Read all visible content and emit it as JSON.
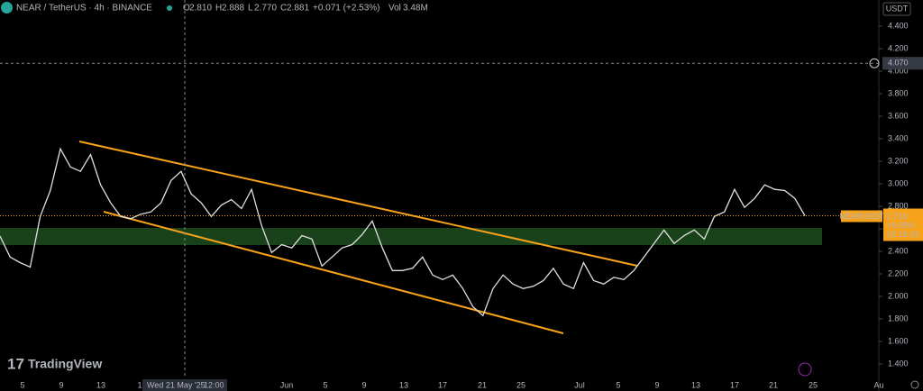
{
  "header": {
    "symbol": "NEAR / TetherUS · 4h · BINANCE",
    "ohlc": [
      {
        "key": "O",
        "value": "2.810"
      },
      {
        "key": "H",
        "value": "2.888"
      },
      {
        "key": "L",
        "value": "2.770"
      },
      {
        "key": "C",
        "value": "2.881"
      }
    ],
    "change": "+0.071 (+2.53%)",
    "vol_key": "Vol",
    "vol_value": "3.48M"
  },
  "currency": "USDT",
  "brand": "TradingView",
  "chart_data": {
    "type": "line",
    "series": [
      {
        "name": "NEARUSDT",
        "color": "#e0e0e0",
        "values": [
          2.536,
          2.35,
          2.3,
          2.26,
          2.71,
          2.94,
          3.31,
          3.15,
          3.11,
          3.26,
          2.99,
          2.83,
          2.71,
          2.69,
          2.73,
          2.75,
          2.83,
          3.03,
          3.11,
          2.91,
          2.83,
          2.71,
          2.81,
          2.86,
          2.78,
          2.95,
          2.63,
          2.39,
          2.46,
          2.43,
          2.54,
          2.51,
          2.27,
          2.35,
          2.43,
          2.46,
          2.55,
          2.67,
          2.43,
          2.23,
          2.23,
          2.25,
          2.35,
          2.19,
          2.15,
          2.19,
          2.07,
          1.91,
          1.83,
          2.07,
          2.19,
          2.11,
          2.07,
          2.09,
          2.14,
          2.25,
          2.11,
          2.07,
          2.3,
          2.14,
          2.11,
          2.17,
          2.15,
          2.23,
          2.35,
          2.47,
          2.59,
          2.47,
          2.54,
          2.59,
          2.51,
          2.71,
          2.75,
          2.95,
          2.79,
          2.87,
          2.99,
          2.95,
          2.94,
          2.87,
          2.716
        ]
      }
    ],
    "ylim": [
      1.272,
      4.632
    ],
    "yticks": [
      {
        "value": 1.4,
        "label": "1.400"
      },
      {
        "value": 1.6,
        "label": "1.600"
      },
      {
        "value": 1.8,
        "label": "1.800"
      },
      {
        "value": 2.0,
        "label": "2.000"
      },
      {
        "value": 2.2,
        "label": "2.200"
      },
      {
        "value": 2.4,
        "label": "2.400"
      },
      {
        "value": 2.6,
        "label": "2.600"
      },
      {
        "value": 2.8,
        "label": "2.800"
      },
      {
        "value": 3.0,
        "label": "3.000"
      },
      {
        "value": 3.2,
        "label": "3.200"
      },
      {
        "value": 3.4,
        "label": "3.400"
      },
      {
        "value": 3.6,
        "label": "3.600"
      },
      {
        "value": 3.8,
        "label": "3.800"
      },
      {
        "value": 4.0,
        "label": "4.000"
      },
      {
        "value": 4.2,
        "label": "4.200"
      },
      {
        "value": 4.4,
        "label": "4.400"
      }
    ],
    "xtick_labels": [
      "5",
      "9",
      "13",
      "1",
      "Jun",
      "5",
      "9",
      "13",
      "17",
      "21",
      "25",
      "Jul",
      "5",
      "9",
      "13",
      "17",
      "21",
      "25",
      "Au"
    ],
    "crosshair": {
      "date": "Wed 21 May '25",
      "time": "12:00",
      "price": {
        "value": 4.07,
        "label": "4.070"
      }
    },
    "last_price": {
      "value": 2.716,
      "label": "2.716",
      "change": "+6.68%",
      "countdown": "02:16:20"
    }
  }
}
